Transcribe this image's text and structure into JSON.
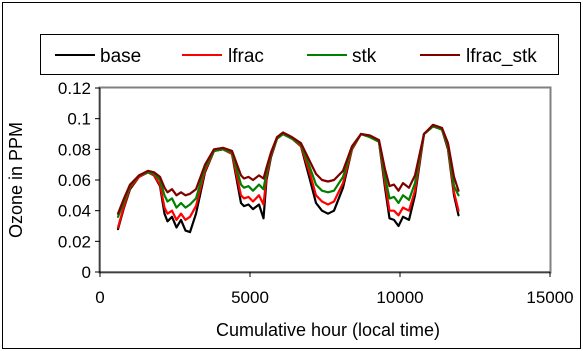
{
  "chart_data": {
    "type": "line",
    "title": "",
    "xlabel": "Cumulative hour (local time)",
    "ylabel": "Ozone in PPM",
    "xlim": [
      0,
      15000
    ],
    "ylim": [
      0,
      0.12
    ],
    "xticks": [
      0,
      5000,
      10000,
      15000
    ],
    "yticks": [
      0,
      0.02,
      0.04,
      0.06,
      0.08,
      0.1,
      0.12
    ],
    "xtick_labels": [
      "0",
      "5000",
      "10000",
      "15000"
    ],
    "ytick_labels": [
      "0",
      "0.02",
      "0.04",
      "0.06",
      "0.08",
      "0.1",
      "0.12"
    ],
    "grid": false,
    "legend_position": "top",
    "series": [
      {
        "name": "base",
        "color": "#000000",
        "x": [
          600,
          800,
          1000,
          1300,
          1600,
          1800,
          2000,
          2150,
          2250,
          2400,
          2550,
          2700,
          2850,
          3000,
          3200,
          3500,
          3800,
          4100,
          4400,
          4700,
          4800,
          4950,
          5100,
          5300,
          5450,
          5550,
          5700,
          5900,
          6100,
          6400,
          6700,
          7000,
          7200,
          7400,
          7600,
          7800,
          8100,
          8400,
          8700,
          9000,
          9300,
          9500,
          9650,
          9800,
          9950,
          10100,
          10300,
          10500,
          10800,
          11100,
          11400,
          11600,
          11800,
          11950
        ],
        "y": [
          0.028,
          0.042,
          0.054,
          0.062,
          0.065,
          0.063,
          0.056,
          0.038,
          0.033,
          0.036,
          0.029,
          0.034,
          0.027,
          0.026,
          0.038,
          0.065,
          0.079,
          0.08,
          0.077,
          0.045,
          0.043,
          0.044,
          0.041,
          0.044,
          0.035,
          0.06,
          0.075,
          0.087,
          0.09,
          0.087,
          0.082,
          0.06,
          0.045,
          0.04,
          0.038,
          0.04,
          0.055,
          0.08,
          0.09,
          0.088,
          0.085,
          0.055,
          0.035,
          0.034,
          0.03,
          0.036,
          0.034,
          0.05,
          0.09,
          0.095,
          0.093,
          0.08,
          0.05,
          0.037
        ]
      },
      {
        "name": "lfrac",
        "color": "#ff0000",
        "x": [
          600,
          800,
          1000,
          1300,
          1600,
          1800,
          2000,
          2150,
          2250,
          2400,
          2550,
          2700,
          2850,
          3000,
          3200,
          3500,
          3800,
          4100,
          4400,
          4700,
          4800,
          4950,
          5100,
          5300,
          5450,
          5550,
          5700,
          5900,
          6100,
          6400,
          6700,
          7000,
          7200,
          7400,
          7600,
          7800,
          8100,
          8400,
          8700,
          9000,
          9300,
          9500,
          9650,
          9800,
          9950,
          10100,
          10300,
          10500,
          10800,
          11100,
          11400,
          11600,
          11800,
          11950
        ],
        "y": [
          0.029,
          0.043,
          0.055,
          0.062,
          0.065,
          0.063,
          0.057,
          0.042,
          0.038,
          0.04,
          0.034,
          0.038,
          0.034,
          0.036,
          0.043,
          0.066,
          0.079,
          0.08,
          0.077,
          0.05,
          0.048,
          0.049,
          0.046,
          0.05,
          0.044,
          0.062,
          0.076,
          0.087,
          0.09,
          0.087,
          0.082,
          0.064,
          0.05,
          0.046,
          0.044,
          0.046,
          0.058,
          0.08,
          0.09,
          0.088,
          0.085,
          0.058,
          0.04,
          0.04,
          0.037,
          0.042,
          0.04,
          0.053,
          0.09,
          0.095,
          0.093,
          0.081,
          0.052,
          0.04
        ]
      },
      {
        "name": "stk",
        "color": "#008000",
        "x": [
          600,
          800,
          1000,
          1300,
          1600,
          1800,
          2000,
          2150,
          2250,
          2400,
          2550,
          2700,
          2850,
          3000,
          3200,
          3500,
          3800,
          4100,
          4400,
          4700,
          4800,
          4950,
          5100,
          5300,
          5450,
          5550,
          5700,
          5900,
          6100,
          6400,
          6700,
          7000,
          7200,
          7400,
          7600,
          7800,
          8100,
          8400,
          8700,
          9000,
          9300,
          9500,
          9650,
          9800,
          9950,
          10100,
          10300,
          10500,
          10800,
          11100,
          11400,
          11600,
          11800,
          11950
        ],
        "y": [
          0.036,
          0.046,
          0.056,
          0.063,
          0.065,
          0.064,
          0.06,
          0.05,
          0.046,
          0.048,
          0.042,
          0.045,
          0.042,
          0.044,
          0.048,
          0.068,
          0.079,
          0.08,
          0.078,
          0.057,
          0.055,
          0.056,
          0.053,
          0.057,
          0.054,
          0.065,
          0.077,
          0.087,
          0.09,
          0.087,
          0.083,
          0.068,
          0.057,
          0.053,
          0.052,
          0.053,
          0.062,
          0.081,
          0.09,
          0.088,
          0.085,
          0.062,
          0.048,
          0.049,
          0.045,
          0.05,
          0.047,
          0.058,
          0.09,
          0.095,
          0.093,
          0.082,
          0.056,
          0.05
        ]
      },
      {
        "name": "lfrac_stk",
        "color": "#800000",
        "x": [
          600,
          800,
          1000,
          1300,
          1600,
          1800,
          2000,
          2150,
          2250,
          2400,
          2550,
          2700,
          2850,
          3000,
          3200,
          3500,
          3800,
          4100,
          4400,
          4700,
          4800,
          4950,
          5100,
          5300,
          5450,
          5550,
          5700,
          5900,
          6100,
          6400,
          6700,
          7000,
          7200,
          7400,
          7600,
          7800,
          8100,
          8400,
          8700,
          9000,
          9300,
          9500,
          9650,
          9800,
          9950,
          10100,
          10300,
          10500,
          10800,
          11100,
          11400,
          11600,
          11800,
          11950
        ],
        "y": [
          0.038,
          0.048,
          0.057,
          0.063,
          0.066,
          0.065,
          0.062,
          0.055,
          0.052,
          0.054,
          0.05,
          0.052,
          0.05,
          0.051,
          0.054,
          0.07,
          0.08,
          0.081,
          0.079,
          0.063,
          0.061,
          0.062,
          0.06,
          0.063,
          0.061,
          0.068,
          0.078,
          0.088,
          0.091,
          0.088,
          0.084,
          0.072,
          0.064,
          0.06,
          0.059,
          0.06,
          0.066,
          0.082,
          0.09,
          0.089,
          0.086,
          0.067,
          0.056,
          0.057,
          0.053,
          0.058,
          0.055,
          0.063,
          0.09,
          0.096,
          0.094,
          0.084,
          0.062,
          0.053
        ]
      }
    ]
  }
}
